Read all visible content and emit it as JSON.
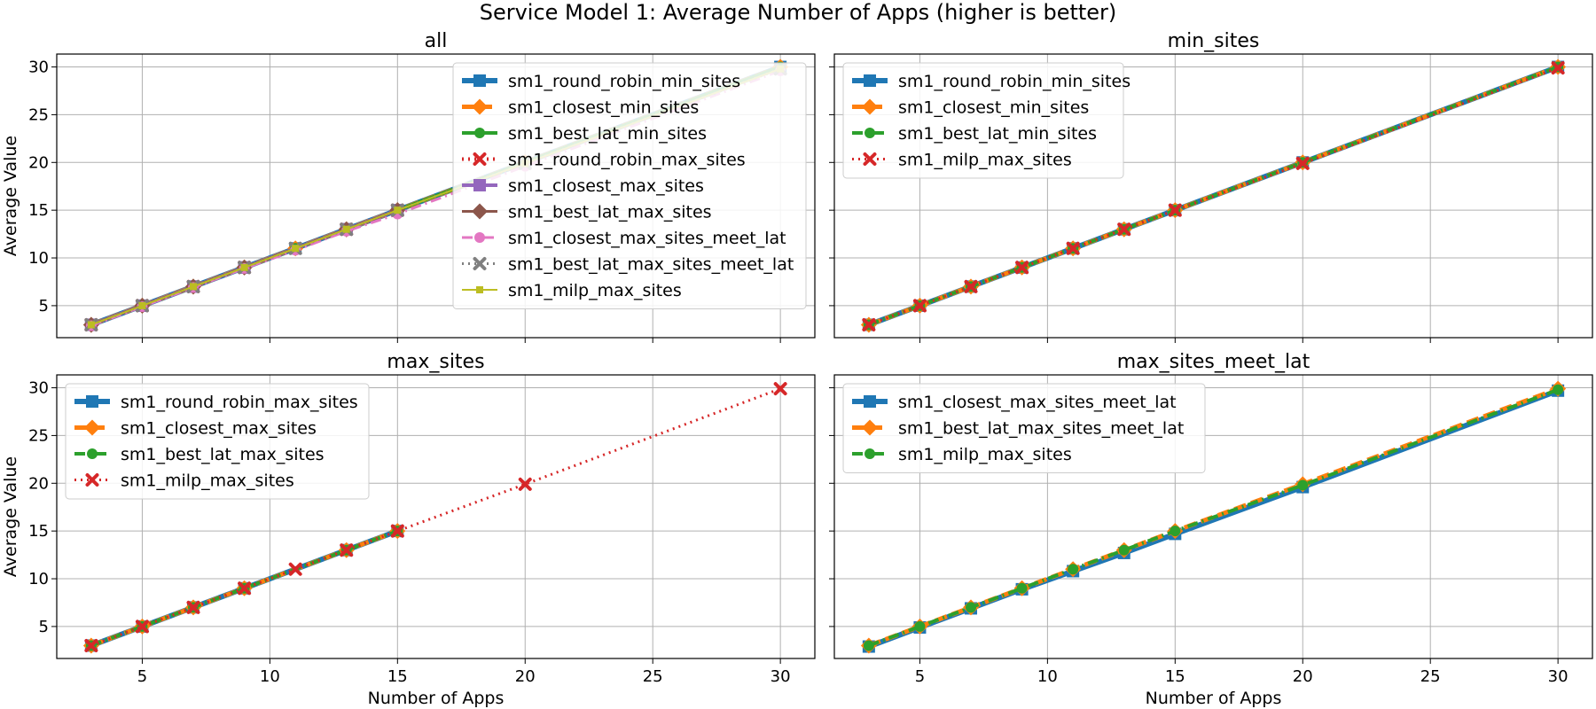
{
  "figure": {
    "title": "Service Model 1: Average Number of Apps (higher is better)"
  },
  "colors": {
    "blue": "#1f77b4",
    "orange": "#ff7f0e",
    "green": "#2ca02c",
    "red": "#d62728",
    "purple": "#9467bd",
    "brown": "#8c564b",
    "pink": "#e377c2",
    "gray": "#7f7f7f",
    "olive": "#bcbd22"
  },
  "chart_data": [
    {
      "type": "line",
      "title": "all",
      "xlabel": "",
      "ylabel": "Average Value",
      "xlim": [
        1.65,
        31.35
      ],
      "ylim": [
        1.65,
        31.35
      ],
      "xticks": [
        5,
        10,
        15,
        20,
        25,
        30
      ],
      "yticks": [
        5,
        10,
        15,
        20,
        25,
        30
      ],
      "grid": true,
      "legend": "upper-right",
      "series": [
        {
          "name": "sm1_round_robin_min_sites",
          "color": "blue",
          "marker": "square",
          "dash": "solid",
          "width": 6,
          "x": [
            3,
            5,
            7,
            9,
            11,
            13,
            15,
            20,
            30
          ],
          "y": [
            3,
            5,
            7,
            9,
            11,
            13,
            15,
            20,
            30
          ]
        },
        {
          "name": "sm1_closest_min_sites",
          "color": "orange",
          "marker": "diamond",
          "dash": "dashed",
          "width": 5,
          "x": [
            3,
            5,
            7,
            9,
            11,
            13,
            15,
            20,
            30
          ],
          "y": [
            3,
            5,
            7,
            9,
            11,
            13,
            15,
            20,
            30
          ]
        },
        {
          "name": "sm1_best_lat_min_sites",
          "color": "green",
          "marker": "circle",
          "dash": "solid",
          "width": 4,
          "x": [
            3,
            5,
            7,
            9,
            11,
            13,
            15,
            20,
            30
          ],
          "y": [
            3,
            5,
            7,
            9,
            11,
            13,
            15,
            20,
            30
          ]
        },
        {
          "name": "sm1_round_robin_max_sites",
          "color": "red",
          "marker": "x",
          "dash": "dotted",
          "width": 4,
          "x": [
            3,
            5,
            7,
            9,
            13,
            15
          ],
          "y": [
            3,
            5,
            7,
            9,
            13,
            15
          ]
        },
        {
          "name": "sm1_closest_max_sites",
          "color": "purple",
          "marker": "square",
          "dash": "solid",
          "width": 4,
          "x": [
            3,
            5,
            7,
            9,
            13,
            15
          ],
          "y": [
            3,
            5,
            7,
            9,
            13,
            15
          ]
        },
        {
          "name": "sm1_best_lat_max_sites",
          "color": "brown",
          "marker": "diamond",
          "dash": "solid",
          "width": 3,
          "x": [
            3,
            5,
            7,
            9,
            13,
            15
          ],
          "y": [
            3,
            5,
            7,
            9,
            13,
            15
          ]
        },
        {
          "name": "sm1_closest_max_sites_meet_lat",
          "color": "pink",
          "marker": "circle",
          "dash": "dashdot",
          "width": 3,
          "x": [
            3,
            5,
            7,
            9,
            11,
            13,
            15,
            20,
            30
          ],
          "y": [
            2.9,
            4.9,
            6.9,
            8.9,
            10.8,
            12.8,
            14.6,
            19.6,
            29.6
          ]
        },
        {
          "name": "sm1_best_lat_max_sites_meet_lat",
          "color": "gray",
          "marker": "x",
          "dash": "dotted",
          "width": 3,
          "x": [
            3,
            5,
            7,
            9,
            11,
            13,
            15,
            20,
            30
          ],
          "y": [
            3,
            5,
            7,
            9,
            11,
            13,
            15,
            19.9,
            29.8
          ]
        },
        {
          "name": "sm1_milp_max_sites",
          "color": "olive",
          "marker": "small-square",
          "dash": "solid",
          "width": 2,
          "x": [
            3,
            5,
            7,
            9,
            11,
            13,
            15,
            20,
            30
          ],
          "y": [
            3,
            5,
            7,
            9,
            11,
            13,
            15,
            19.9,
            29.8
          ]
        }
      ]
    },
    {
      "type": "line",
      "title": "min_sites",
      "xlabel": "",
      "ylabel": "",
      "xlim": [
        1.65,
        31.35
      ],
      "ylim": [
        1.65,
        31.35
      ],
      "xticks": [
        5,
        10,
        15,
        20,
        25,
        30
      ],
      "yticks": [
        5,
        10,
        15,
        20,
        25,
        30
      ],
      "grid": true,
      "legend": "upper-left",
      "series": [
        {
          "name": "sm1_round_robin_min_sites",
          "color": "blue",
          "marker": "square",
          "dash": "solid",
          "width": 6,
          "x": [
            3,
            5,
            7,
            9,
            11,
            13,
            15,
            20,
            30
          ],
          "y": [
            3,
            5,
            7,
            9,
            11,
            13,
            15,
            20,
            30
          ]
        },
        {
          "name": "sm1_closest_min_sites",
          "color": "orange",
          "marker": "diamond",
          "dash": "dashed",
          "width": 5,
          "x": [
            3,
            5,
            7,
            9,
            11,
            13,
            15,
            20,
            30
          ],
          "y": [
            3,
            5,
            7,
            9,
            11,
            13,
            15,
            20,
            30
          ]
        },
        {
          "name": "sm1_best_lat_min_sites",
          "color": "green",
          "marker": "circle",
          "dash": "dashdot",
          "width": 4,
          "x": [
            3,
            5,
            7,
            9,
            11,
            13,
            15,
            20,
            30
          ],
          "y": [
            3,
            5,
            7,
            9,
            11,
            13,
            15,
            20,
            30
          ]
        },
        {
          "name": "sm1_milp_max_sites",
          "color": "red",
          "marker": "x",
          "dash": "dotted",
          "width": 3,
          "x": [
            3,
            5,
            7,
            9,
            11,
            13,
            15,
            20,
            30
          ],
          "y": [
            3,
            5,
            7,
            9,
            11,
            13,
            15,
            19.9,
            29.9
          ]
        }
      ]
    },
    {
      "type": "line",
      "title": "max_sites",
      "xlabel": "Number of Apps",
      "ylabel": "Average Value",
      "xlim": [
        1.65,
        31.35
      ],
      "ylim": [
        1.65,
        31.35
      ],
      "xticks": [
        5,
        10,
        15,
        20,
        25,
        30
      ],
      "yticks": [
        5,
        10,
        15,
        20,
        25,
        30
      ],
      "grid": true,
      "legend": "upper-left",
      "series": [
        {
          "name": "sm1_round_robin_max_sites",
          "color": "blue",
          "marker": "square",
          "dash": "solid",
          "width": 6,
          "x": [
            3,
            5,
            7,
            9,
            13,
            15
          ],
          "y": [
            3,
            5,
            7,
            9,
            13,
            15
          ]
        },
        {
          "name": "sm1_closest_max_sites",
          "color": "orange",
          "marker": "diamond",
          "dash": "dashed",
          "width": 5,
          "x": [
            3,
            5,
            7,
            9,
            13,
            15
          ],
          "y": [
            3,
            5,
            7,
            9,
            13,
            15
          ]
        },
        {
          "name": "sm1_best_lat_max_sites",
          "color": "green",
          "marker": "circle",
          "dash": "dashdot",
          "width": 4,
          "x": [
            3,
            5,
            7,
            9,
            13,
            15
          ],
          "y": [
            3,
            5,
            7,
            9,
            13,
            15
          ]
        },
        {
          "name": "sm1_milp_max_sites",
          "color": "red",
          "marker": "x",
          "dash": "dotted",
          "width": 3,
          "x": [
            3,
            5,
            7,
            9,
            11,
            13,
            15,
            20,
            30
          ],
          "y": [
            3,
            5,
            7,
            9,
            11,
            13,
            15,
            19.9,
            29.9
          ]
        }
      ]
    },
    {
      "type": "line",
      "title": "max_sites_meet_lat",
      "xlabel": "Number of Apps",
      "ylabel": "",
      "xlim": [
        1.65,
        31.35
      ],
      "ylim": [
        1.65,
        31.35
      ],
      "xticks": [
        5,
        10,
        15,
        20,
        25,
        30
      ],
      "yticks": [
        5,
        10,
        15,
        20,
        25,
        30
      ],
      "grid": true,
      "legend": "upper-left",
      "series": [
        {
          "name": "sm1_closest_max_sites_meet_lat",
          "color": "blue",
          "marker": "square",
          "dash": "solid",
          "width": 6,
          "x": [
            3,
            5,
            7,
            9,
            11,
            13,
            15,
            20,
            30
          ],
          "y": [
            2.9,
            4.9,
            6.9,
            8.9,
            10.8,
            12.7,
            14.7,
            19.6,
            29.7
          ]
        },
        {
          "name": "sm1_best_lat_max_sites_meet_lat",
          "color": "orange",
          "marker": "diamond",
          "dash": "dashed",
          "width": 5,
          "x": [
            3,
            5,
            7,
            9,
            11,
            13,
            15,
            20,
            30
          ],
          "y": [
            3,
            5,
            7,
            9,
            11,
            13,
            15,
            19.9,
            29.9
          ]
        },
        {
          "name": "sm1_milp_max_sites",
          "color": "green",
          "marker": "circle",
          "dash": "dashdot",
          "width": 4,
          "x": [
            3,
            5,
            7,
            9,
            11,
            13,
            15,
            20,
            30
          ],
          "y": [
            3,
            5,
            7,
            9,
            11,
            13,
            15,
            19.8,
            29.8
          ]
        }
      ]
    }
  ]
}
